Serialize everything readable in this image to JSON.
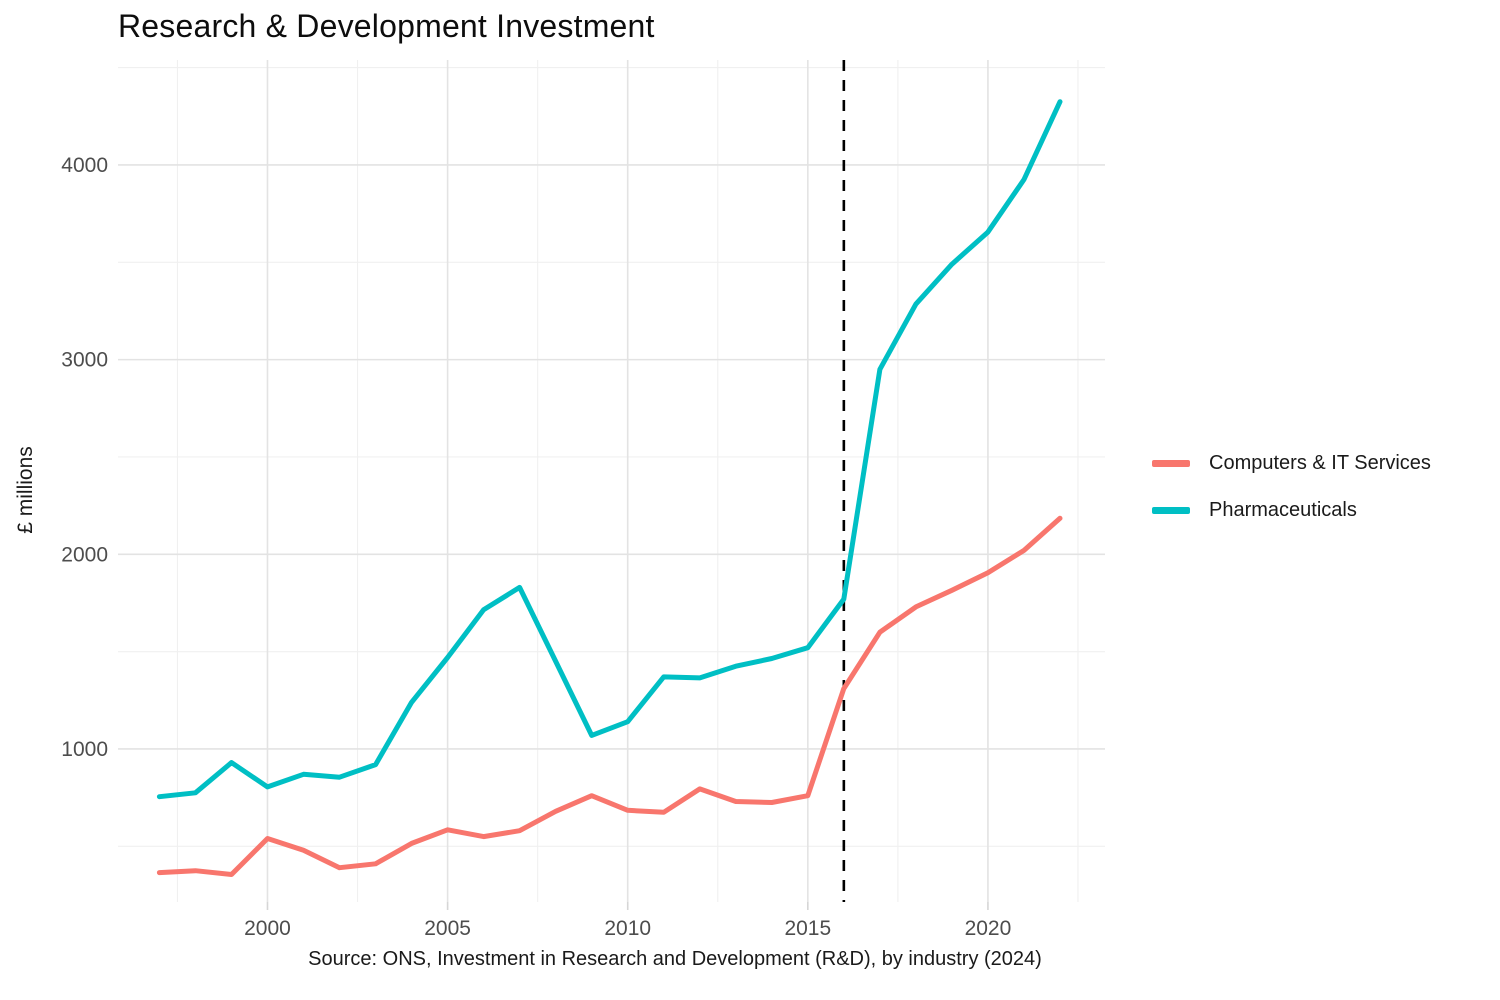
{
  "chart_data": {
    "type": "line",
    "title": "Research & Development Investment",
    "ylabel": "£ millions",
    "xlabel": "",
    "caption": "Source: ONS, Investment in Research and Development (R&D), by industry (2024)",
    "x": [
      1997,
      1998,
      1999,
      2000,
      2001,
      2002,
      2003,
      2004,
      2005,
      2006,
      2007,
      2008,
      2009,
      2010,
      2011,
      2012,
      2013,
      2014,
      2015,
      2016,
      2017,
      2018,
      2019,
      2020,
      2021,
      2022
    ],
    "series": [
      {
        "name": "Computers & IT Services",
        "color": "#F8766D",
        "values": [
          365,
          375,
          355,
          540,
          480,
          390,
          410,
          515,
          585,
          550,
          580,
          680,
          760,
          685,
          675,
          795,
          730,
          725,
          760,
          1310,
          1600,
          1730,
          1815,
          1905,
          2020,
          2185
        ]
      },
      {
        "name": "Pharmaceuticals",
        "color": "#00BFC4",
        "values": [
          755,
          775,
          930,
          805,
          870,
          855,
          920,
          1240,
          1470,
          1715,
          1830,
          1450,
          1070,
          1140,
          1370,
          1365,
          1425,
          1465,
          1520,
          1770,
          2950,
          3285,
          3490,
          3655,
          3925,
          4325
        ]
      }
    ],
    "annotations": [
      {
        "type": "vline",
        "x": 2016,
        "style": "dashed",
        "color": "#000000"
      }
    ],
    "x_ticks": [
      2000,
      2005,
      2010,
      2015,
      2020
    ],
    "y_ticks": [
      1000,
      2000,
      3000,
      4000
    ],
    "grid": {
      "x_minor": [
        1997.5,
        2002.5,
        2007.5,
        2012.5,
        2017.5,
        2022.5
      ],
      "y_minor": [
        500,
        1500,
        2500,
        3500,
        4500
      ],
      "major_color": "#E3E3E3",
      "minor_color": "#F0F0F0"
    },
    "x_range": [
      1995.85,
      2023.25
    ],
    "y_range": [
      214,
      4539
    ],
    "legend_position": "right",
    "background": "#FFFFFF"
  }
}
